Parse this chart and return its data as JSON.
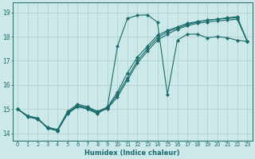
{
  "xlabel": "Humidex (Indice chaleur)",
  "xlim": [
    -0.5,
    23.5
  ],
  "ylim": [
    13.7,
    19.4
  ],
  "xticks": [
    0,
    1,
    2,
    3,
    4,
    5,
    6,
    7,
    8,
    9,
    10,
    11,
    12,
    13,
    14,
    15,
    16,
    17,
    18,
    19,
    20,
    21,
    22,
    23
  ],
  "yticks": [
    14,
    15,
    16,
    17,
    18,
    19
  ],
  "bg_color": "#cce8e8",
  "line_color": "#1a6b6b",
  "grid_color": "#aacece",
  "line1_x": [
    0,
    1,
    2,
    3,
    4,
    5,
    6,
    7,
    8,
    9,
    10,
    11,
    12,
    13,
    14,
    15,
    16,
    17,
    18,
    19,
    20,
    21,
    22,
    23
  ],
  "line1_y": [
    15.0,
    14.7,
    14.6,
    14.2,
    14.1,
    14.8,
    15.1,
    15.0,
    14.8,
    15.1,
    17.6,
    18.75,
    18.88,
    18.9,
    18.6,
    15.6,
    17.85,
    18.1,
    18.1,
    17.95,
    18.0,
    17.95,
    17.85,
    17.8
  ],
  "line2_x": [
    0,
    1,
    2,
    3,
    4,
    5,
    6,
    7,
    8,
    9,
    10,
    11,
    12,
    13,
    14,
    15,
    16,
    17,
    18,
    19,
    20,
    21,
    22,
    23
  ],
  "line2_y": [
    15.0,
    14.72,
    14.62,
    14.22,
    14.12,
    14.85,
    15.12,
    15.02,
    14.85,
    15.02,
    15.5,
    16.2,
    16.9,
    17.4,
    17.85,
    18.1,
    18.3,
    18.45,
    18.55,
    18.6,
    18.65,
    18.68,
    18.72,
    17.8
  ],
  "line3_x": [
    0,
    1,
    2,
    3,
    4,
    5,
    6,
    7,
    8,
    9,
    10,
    11,
    12,
    13,
    14,
    15,
    16,
    17,
    18,
    19,
    20,
    21,
    22,
    23
  ],
  "line3_y": [
    15.0,
    14.72,
    14.62,
    14.22,
    14.12,
    14.85,
    15.15,
    15.05,
    14.88,
    15.05,
    15.6,
    16.3,
    17.0,
    17.5,
    17.95,
    18.2,
    18.35,
    18.5,
    18.6,
    18.68,
    18.72,
    18.75,
    18.78,
    17.8
  ],
  "line4_x": [
    0,
    1,
    2,
    3,
    4,
    5,
    6,
    7,
    8,
    9,
    10,
    11,
    12,
    13,
    14,
    15,
    16,
    17,
    18,
    19,
    20,
    21,
    22,
    23
  ],
  "line4_y": [
    15.0,
    14.68,
    14.58,
    14.25,
    14.15,
    14.9,
    15.2,
    15.1,
    14.9,
    15.08,
    15.7,
    16.5,
    17.15,
    17.6,
    18.05,
    18.25,
    18.4,
    18.55,
    18.62,
    18.68,
    18.72,
    18.78,
    18.82,
    17.8
  ]
}
